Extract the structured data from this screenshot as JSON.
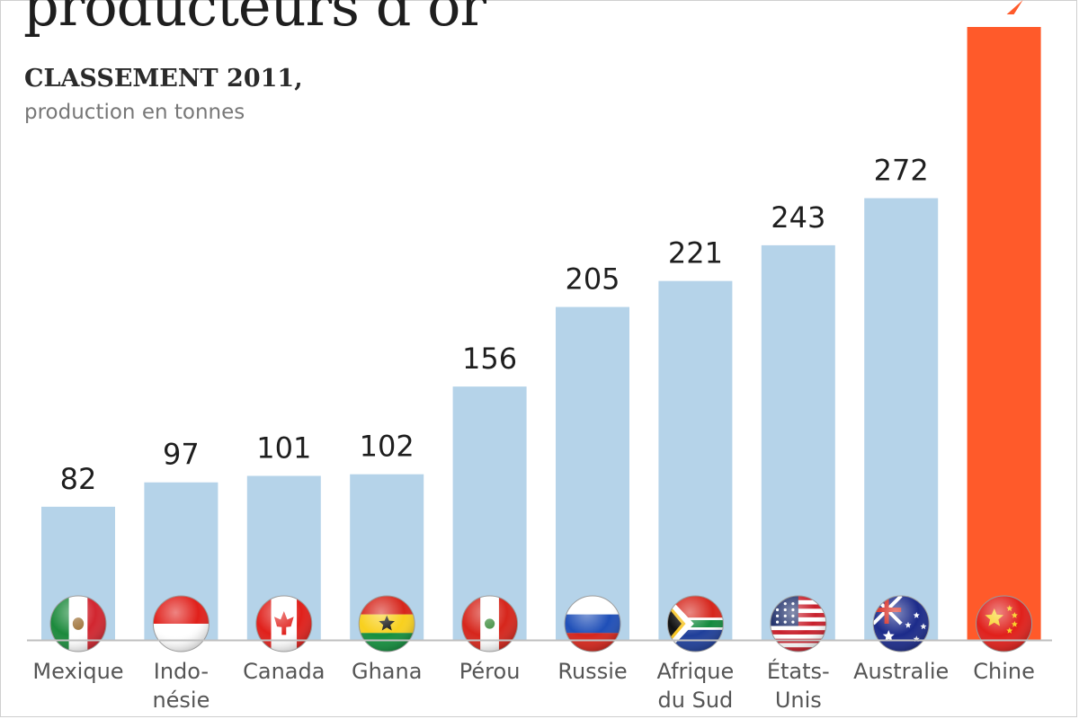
{
  "header": {
    "title": "producteurs d’or",
    "subtitle": "CLASSEMENT 2011,",
    "unit": "production en tonnes"
  },
  "chart_data": {
    "type": "bar",
    "title": "producteurs d’or",
    "subtitle": "CLASSEMENT 2011,",
    "ylabel": "production en tonnes",
    "xlabel": "",
    "categories": [
      [
        "Mexique"
      ],
      [
        "Indo-",
        "nésie"
      ],
      [
        "Canada"
      ],
      [
        "Ghana"
      ],
      [
        "Pérou"
      ],
      [
        "Russie"
      ],
      [
        "Afrique",
        "du Sud"
      ],
      [
        "États-",
        "Unis"
      ],
      [
        "Australie"
      ],
      [
        "Chine"
      ]
    ],
    "values": [
      82,
      97,
      101,
      102,
      156,
      205,
      221,
      243,
      272,
      null
    ],
    "value_labels": [
      "82",
      "97",
      "101",
      "102",
      "156",
      "205",
      "221",
      "243",
      "272",
      ""
    ],
    "flags": [
      "mexico-flag-icon",
      "indonesia-flag-icon",
      "canada-flag-icon",
      "ghana-flag-icon",
      "peru-flag-icon",
      "russia-flag-icon",
      "south-africa-flag-icon",
      "usa-flag-icon",
      "australia-flag-icon",
      "china-flag-icon"
    ],
    "highlight": "Chine",
    "ylim": [
      0,
      380
    ],
    "grid": false,
    "legend": "none",
    "colors": {
      "bar": "#b5d3e9",
      "highlight": "#ff5a2a",
      "baseline": "#bfbfbf"
    }
  }
}
